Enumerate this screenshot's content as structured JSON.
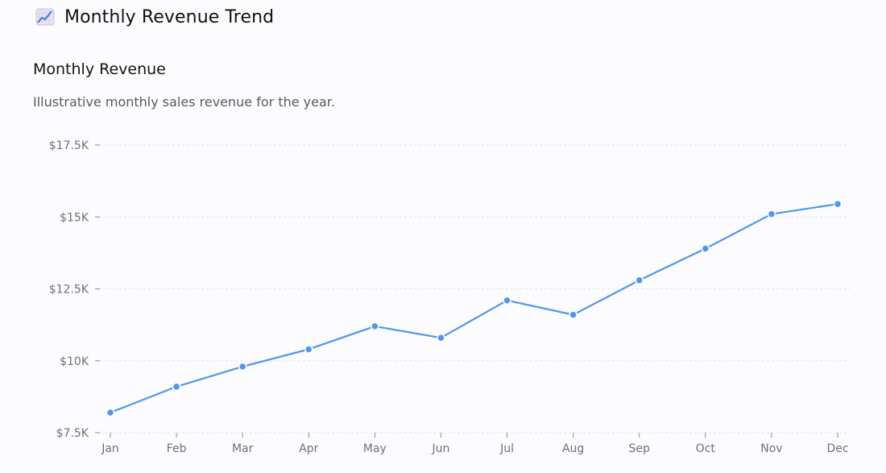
{
  "header": {
    "title": "Monthly Revenue Trend",
    "icon": "chart-increasing-icon"
  },
  "card": {
    "title": "Monthly Revenue",
    "description": "Illustrative monthly sales revenue for the year."
  },
  "colors": {
    "line": "#4e97ea",
    "grid": "#e6e3ee"
  },
  "chart_data": {
    "type": "line",
    "categories": [
      "Jan",
      "Feb",
      "Mar",
      "Apr",
      "May",
      "Jun",
      "Jul",
      "Aug",
      "Sep",
      "Oct",
      "Nov",
      "Dec"
    ],
    "series": [
      {
        "values": [
          8200,
          9100,
          9800,
          10400,
          11200,
          10800,
          12100,
          11600,
          12800,
          13900,
          15100,
          15450
        ]
      }
    ],
    "yticks": [
      7500,
      10000,
      12500,
      15000,
      17500
    ],
    "ytick_labels": [
      "$7.5K",
      "$10K",
      "$12.5K",
      "$15K",
      "$17.5K"
    ],
    "ylim": [
      7500,
      17500
    ],
    "grid": true,
    "xlabel": "",
    "ylabel": ""
  }
}
